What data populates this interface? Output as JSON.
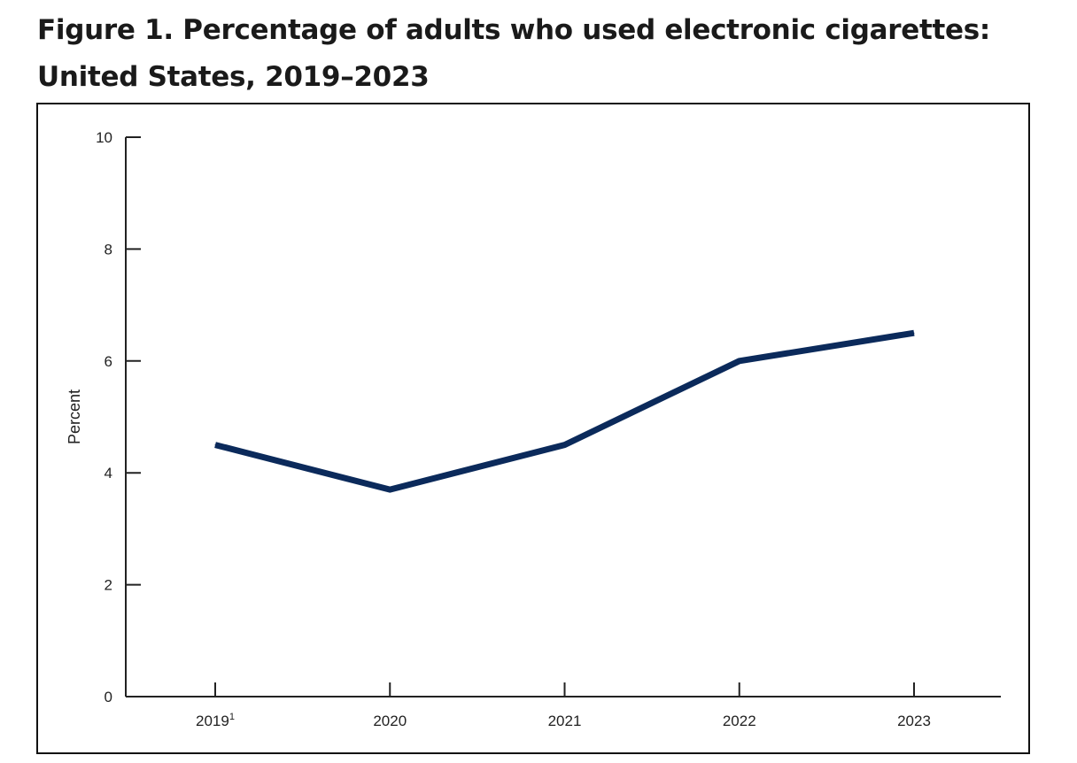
{
  "header": {
    "title_line1": "Figure 1. Percentage of adults who used electronic cigarettes:",
    "title_line2": "United States, 2019–2023"
  },
  "chart_data": {
    "type": "line",
    "title": "Figure 1. Percentage of adults who used electronic cigarettes: United States, 2019–2023",
    "categories": [
      "2019",
      "2020",
      "2021",
      "2022",
      "2023"
    ],
    "category_footnotes": [
      "1",
      "",
      "",
      "",
      ""
    ],
    "series": [
      {
        "values": [
          4.5,
          3.7,
          4.5,
          6.0,
          6.5
        ],
        "color": "#0b2a5b"
      }
    ],
    "ylabel": "Percent",
    "xlabel": "",
    "ylim": [
      0,
      10
    ],
    "yticks": [
      0,
      2,
      4,
      6,
      8,
      10
    ],
    "grid": false,
    "legend": "none"
  }
}
